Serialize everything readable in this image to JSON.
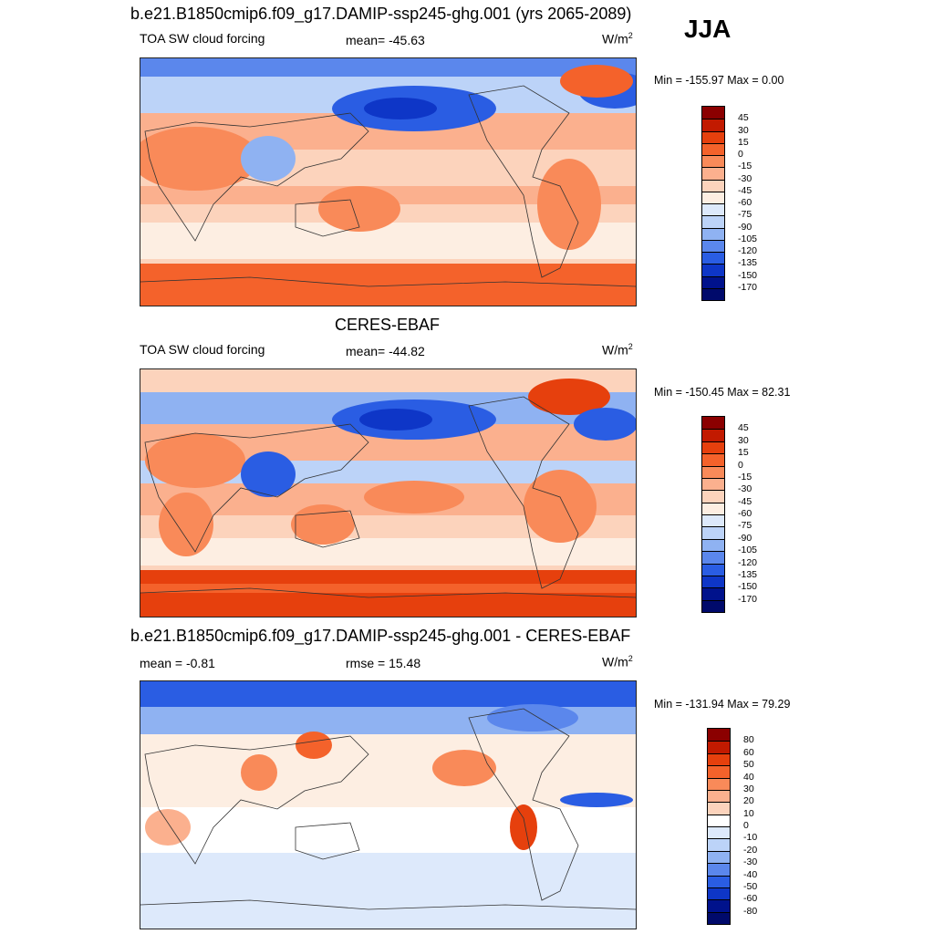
{
  "season": "JJA",
  "panels": [
    {
      "title": "b.e21.B1850cmip6.f09_g17.DAMIP-ssp245-ghg.001 (yrs 2065-2089)",
      "left_label": "TOA SW cloud forcing",
      "center_label": "mean= -45.63",
      "units": "W/m",
      "units_exp": "2",
      "minmax": "Min = -155.97 Max =   0.00",
      "colorbar_labels": [
        "45",
        "30",
        "15",
        "0",
        "-15",
        "-30",
        "-45",
        "-60",
        "-75",
        "-90",
        "-105",
        "-120",
        "-135",
        "-150",
        "-170"
      ]
    },
    {
      "title": "CERES-EBAF",
      "left_label": "TOA SW cloud forcing",
      "center_label": "mean= -44.82",
      "units": "W/m",
      "units_exp": "2",
      "minmax": "Min = -150.45 Max =  82.31",
      "colorbar_labels": [
        "45",
        "30",
        "15",
        "0",
        "-15",
        "-30",
        "-45",
        "-60",
        "-75",
        "-90",
        "-105",
        "-120",
        "-135",
        "-150",
        "-170"
      ]
    },
    {
      "title": "b.e21.B1850cmip6.f09_g17.DAMIP-ssp245-ghg.001 - CERES-EBAF",
      "left_label": "mean =  -0.81",
      "center_label": "rmse =  15.48",
      "units": "W/m",
      "units_exp": "2",
      "minmax": "Min = -131.94 Max =  79.29",
      "colorbar_labels": [
        "80",
        "60",
        "50",
        "40",
        "30",
        "20",
        "10",
        "0",
        "-10",
        "-20",
        "-30",
        "-40",
        "-50",
        "-60",
        "-80"
      ]
    }
  ],
  "colors": {
    "abs_scale": [
      "#8b0000",
      "#c21a00",
      "#e6400d",
      "#f4622b",
      "#f98a59",
      "#fbb08e",
      "#fcd3bc",
      "#fdeee2",
      "#dde9fb",
      "#bcd3f8",
      "#8fb2f2",
      "#5b87ec",
      "#2a5de3",
      "#0e36c7",
      "#00128c",
      "#000a6b"
    ],
    "diff_scale": [
      "#8b0000",
      "#c21a00",
      "#e6400d",
      "#f4622b",
      "#f98a59",
      "#fbb08e",
      "#fcd3bc",
      "#ffffff",
      "#dde9fb",
      "#bcd3f8",
      "#8fb2f2",
      "#5b87ec",
      "#2a5de3",
      "#0e36c7",
      "#00128c",
      "#000a6b"
    ]
  }
}
